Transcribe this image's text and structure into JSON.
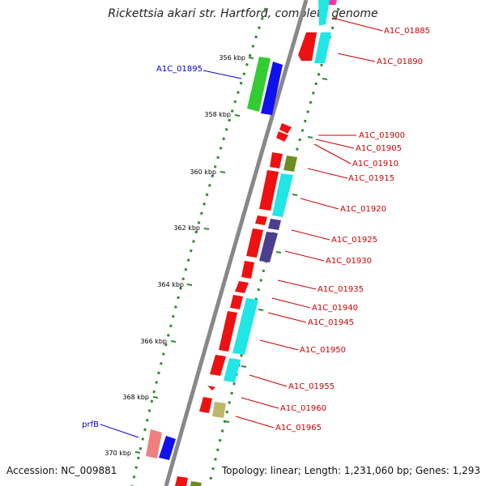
{
  "title": "Rickettsia akari str. Hartford, complete genome",
  "footer": {
    "accession": "Accession: NC_009881",
    "summary": "Topology: linear; Length: 1,231,060 bp; Genes: 1,293"
  },
  "ticks": [
    "356 kbp",
    "358 kbp",
    "360 kbp",
    "362 kbp",
    "364 kbp",
    "366 kbp",
    "368 kbp",
    "370 kbp"
  ],
  "labels_left": [
    {
      "text": "A1C_01895",
      "color": "#0000cc"
    },
    {
      "text": "prfB",
      "color": "#0000cc"
    }
  ],
  "labels_right": [
    {
      "text": "A1C_01885",
      "color": "#cc0000"
    },
    {
      "text": "A1C_01890",
      "color": "#cc0000"
    },
    {
      "text": "A1C_01900",
      "color": "#cc0000"
    },
    {
      "text": "A1C_01905",
      "color": "#cc0000"
    },
    {
      "text": "A1C_01910",
      "color": "#cc0000"
    },
    {
      "text": "A1C_01915",
      "color": "#cc0000"
    },
    {
      "text": "A1C_01920",
      "color": "#cc0000"
    },
    {
      "text": "A1C_01925",
      "color": "#cc0000"
    },
    {
      "text": "A1C_01930",
      "color": "#cc0000"
    },
    {
      "text": "A1C_01935",
      "color": "#cc0000"
    },
    {
      "text": "A1C_01940",
      "color": "#cc0000"
    },
    {
      "text": "A1C_01945",
      "color": "#cc0000"
    },
    {
      "text": "A1C_01950",
      "color": "#cc0000"
    },
    {
      "text": "A1C_01955",
      "color": "#cc0000"
    },
    {
      "text": "A1C_01960",
      "color": "#cc0000"
    },
    {
      "text": "A1C_01965",
      "color": "#cc0000"
    }
  ],
  "colors": {
    "backbone": "#8a8a8a",
    "gc_dots": "#2e8b2e",
    "cds_forward": "#ee1111",
    "cds_reverse": "#1111ee",
    "green_feature": "#33cc33",
    "cyan_feature": "#22e5e5",
    "olive_feature": "#6b8e23",
    "purple_feature": "#4b3d8f",
    "khaki_feature": "#bdb76b",
    "pink_feature": "#f08080"
  }
}
